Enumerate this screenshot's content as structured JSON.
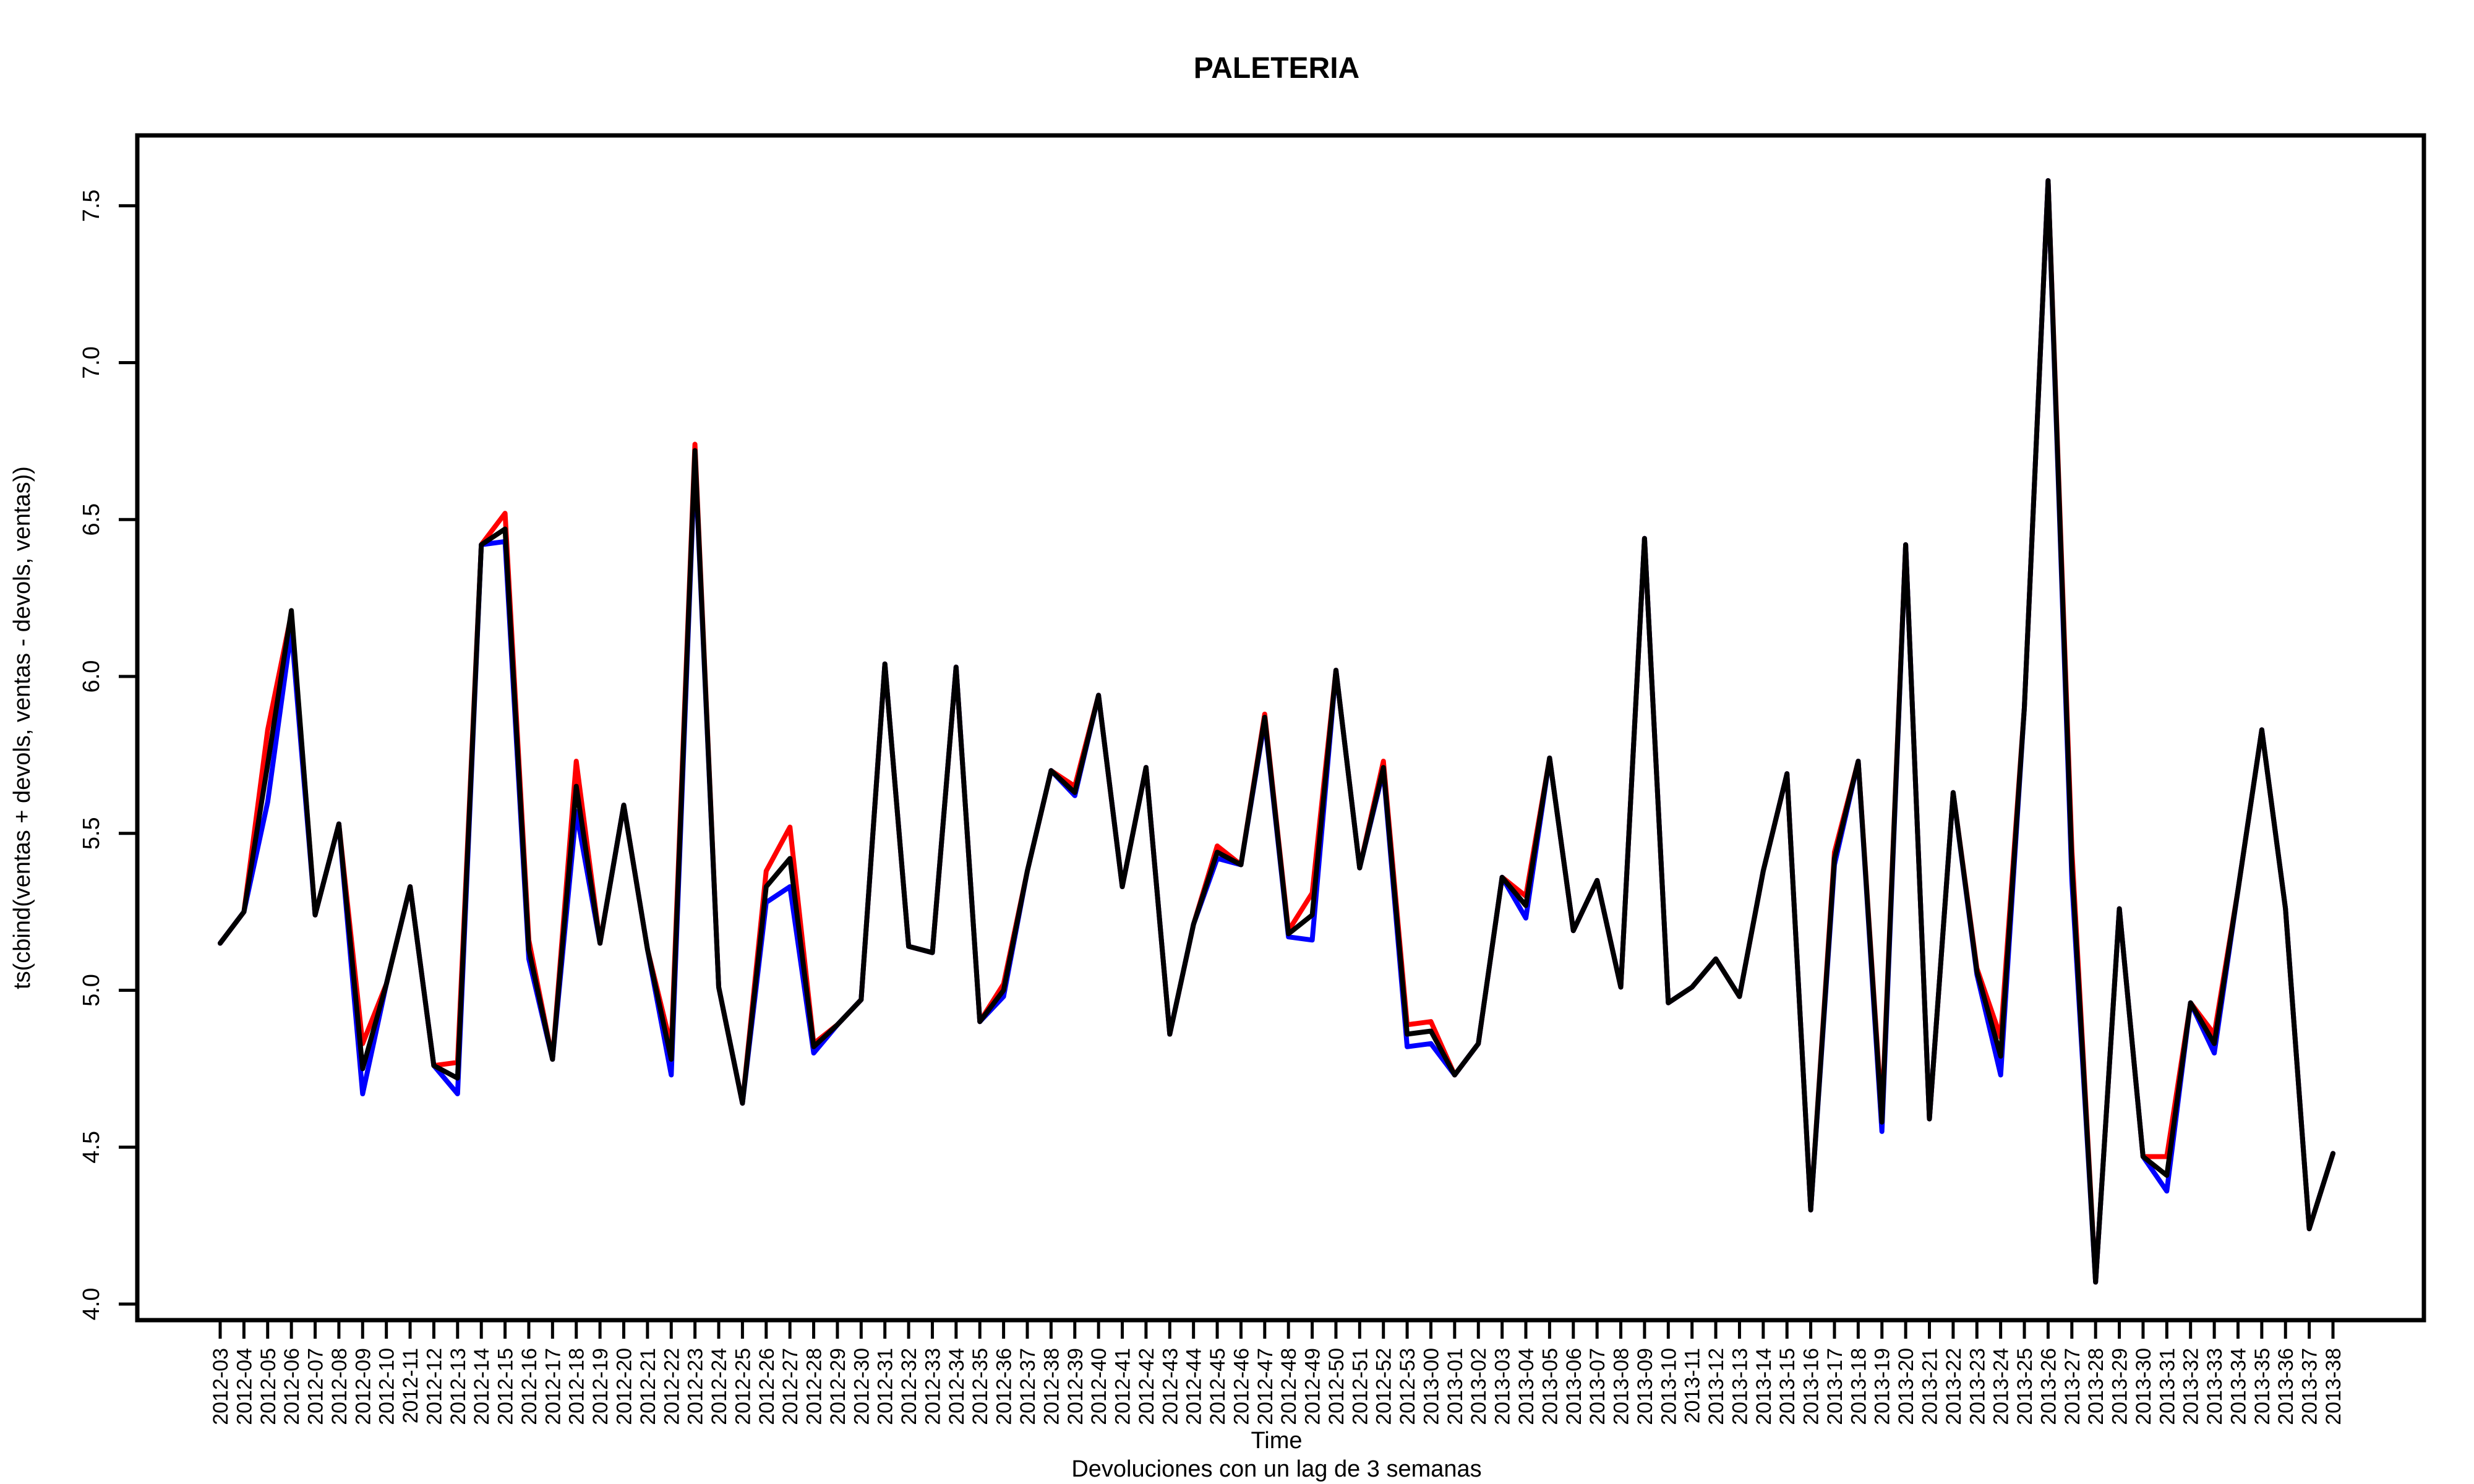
{
  "chart_data": {
    "type": "line",
    "title": "PALETERIA",
    "xlabel": "Time",
    "ylabel": "ts(cbind(ventas + devols, ventas - devols, ventas))",
    "subtitle": "Devoluciones con un lag de 3 semanas",
    "ylim": [
      4.0,
      7.6
    ],
    "yticks": [
      "4.0",
      "4.5",
      "5.0",
      "5.5",
      "6.0",
      "6.5",
      "7.0",
      "7.5"
    ],
    "grid": false,
    "legend": "none",
    "categories": [
      "2012-03",
      "2012-04",
      "2012-05",
      "2012-06",
      "2012-07",
      "2012-08",
      "2012-09",
      "2012-10",
      "2012-11",
      "2012-12",
      "2012-13",
      "2012-14",
      "2012-15",
      "2012-16",
      "2012-17",
      "2012-18",
      "2012-19",
      "2012-20",
      "2012-21",
      "2012-22",
      "2012-23",
      "2012-24",
      "2012-25",
      "2012-26",
      "2012-27",
      "2012-28",
      "2012-29",
      "2012-30",
      "2012-31",
      "2012-32",
      "2012-33",
      "2012-34",
      "2012-35",
      "2012-36",
      "2012-37",
      "2012-38",
      "2012-39",
      "2012-40",
      "2012-41",
      "2012-42",
      "2012-43",
      "2012-44",
      "2012-45",
      "2012-46",
      "2012-47",
      "2012-48",
      "2012-49",
      "2012-50",
      "2012-51",
      "2012-52",
      "2012-53",
      "2013-00",
      "2013-01",
      "2013-02",
      "2013-03",
      "2013-04",
      "2013-05",
      "2013-06",
      "2013-07",
      "2013-08",
      "2013-09",
      "2013-10",
      "2013-11",
      "2013-12",
      "2013-13",
      "2013-14",
      "2013-15",
      "2013-16",
      "2013-17",
      "2013-18",
      "2013-19",
      "2013-20",
      "2013-21",
      "2013-22",
      "2013-23",
      "2013-24",
      "2013-25",
      "2013-26",
      "2013-27",
      "2013-28",
      "2013-29",
      "2013-30",
      "2013-31",
      "2013-32",
      "2013-33",
      "2013-34",
      "2013-35",
      "2013-36",
      "2013-37",
      "2013-38"
    ],
    "series": [
      {
        "color": "#ff0000",
        "values": [
          5.15,
          5.25,
          5.83,
          6.2,
          5.24,
          5.53,
          4.83,
          5.02,
          5.33,
          4.76,
          4.77,
          6.42,
          6.52,
          5.16,
          4.78,
          5.73,
          5.15,
          5.59,
          5.13,
          4.82,
          6.74,
          5.01,
          4.64,
          5.38,
          5.52,
          4.83,
          4.89,
          4.97,
          6.04,
          5.14,
          5.12,
          6.03,
          4.9,
          5.02,
          5.38,
          5.7,
          5.65,
          5.94,
          5.33,
          5.71,
          4.86,
          5.21,
          5.46,
          5.4,
          5.88,
          5.19,
          5.31,
          6.02,
          5.39,
          5.73,
          4.89,
          4.9,
          4.73,
          4.83,
          5.36,
          5.3,
          5.74,
          5.19,
          5.35,
          5.01,
          6.44,
          4.96,
          5.01,
          5.1,
          4.98,
          5.38,
          5.69,
          4.3,
          5.44,
          5.73,
          4.6,
          6.42,
          4.59,
          5.63,
          5.07,
          4.85,
          5.9,
          7.58,
          5.45,
          4.07,
          5.26,
          4.47,
          4.47,
          4.96,
          4.86,
          5.32,
          5.83,
          5.26,
          4.24,
          4.48
        ]
      },
      {
        "color": "#0000ff",
        "values": [
          5.15,
          5.25,
          5.6,
          6.15,
          5.24,
          5.53,
          4.67,
          5.02,
          5.33,
          4.76,
          4.67,
          6.42,
          6.43,
          5.1,
          4.78,
          5.57,
          5.15,
          5.59,
          5.13,
          4.73,
          6.7,
          5.01,
          4.64,
          5.28,
          5.33,
          4.8,
          4.89,
          4.97,
          6.04,
          5.14,
          5.12,
          6.03,
          4.9,
          4.98,
          5.38,
          5.7,
          5.62,
          5.94,
          5.33,
          5.71,
          4.86,
          5.21,
          5.42,
          5.4,
          5.86,
          5.17,
          5.16,
          6.02,
          5.39,
          5.7,
          4.82,
          4.83,
          4.73,
          4.83,
          5.36,
          5.23,
          5.74,
          5.19,
          5.35,
          5.01,
          6.44,
          4.96,
          5.01,
          5.1,
          4.98,
          5.38,
          5.69,
          4.3,
          5.4,
          5.73,
          4.55,
          6.42,
          4.59,
          5.63,
          5.05,
          4.73,
          5.9,
          7.58,
          5.35,
          4.07,
          5.26,
          4.47,
          4.36,
          4.96,
          4.8,
          5.32,
          5.83,
          5.26,
          4.24,
          4.48
        ]
      },
      {
        "color": "#000000",
        "values": [
          5.15,
          5.25,
          5.72,
          6.21,
          5.24,
          5.53,
          4.75,
          5.02,
          5.33,
          4.76,
          4.72,
          6.42,
          6.47,
          5.13,
          4.78,
          5.65,
          5.15,
          5.59,
          5.13,
          4.78,
          6.72,
          5.01,
          4.64,
          5.33,
          5.42,
          4.82,
          4.89,
          4.97,
          6.04,
          5.14,
          5.12,
          6.03,
          4.9,
          5.0,
          5.38,
          5.7,
          5.63,
          5.94,
          5.33,
          5.71,
          4.86,
          5.21,
          5.44,
          5.4,
          5.87,
          5.18,
          5.24,
          6.02,
          5.39,
          5.71,
          4.86,
          4.87,
          4.73,
          4.83,
          5.36,
          5.27,
          5.74,
          5.19,
          5.35,
          5.01,
          6.44,
          4.96,
          5.01,
          5.1,
          4.98,
          5.38,
          5.69,
          4.3,
          5.42,
          5.73,
          4.58,
          6.42,
          4.59,
          5.63,
          5.06,
          4.79,
          5.9,
          7.58,
          5.4,
          4.07,
          5.26,
          4.47,
          4.41,
          4.96,
          4.83,
          5.32,
          5.83,
          5.26,
          4.24,
          4.48
        ]
      }
    ]
  }
}
